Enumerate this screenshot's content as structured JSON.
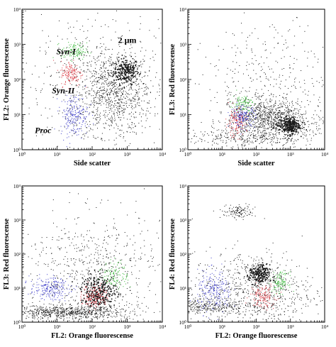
{
  "chart_data": [
    {
      "type": "scatter",
      "xlabel": "Side scatter",
      "ylabel": "FL2: Orange fluorescense",
      "xscale": "log",
      "yscale": "log",
      "xlim": [
        1,
        10000
      ],
      "ylim": [
        1,
        10000
      ],
      "xticks": [
        "10⁰",
        "10¹",
        "10²",
        "10³",
        "10⁴"
      ],
      "yticks": [
        "10⁰",
        "10¹",
        "10²",
        "10³",
        "10⁴"
      ],
      "annotations": [
        {
          "text": "Syn-I",
          "x": 18,
          "y": 520,
          "style": "italic"
        },
        {
          "text": "Syn-II",
          "x": 15,
          "y": 40,
          "style": "italic"
        },
        {
          "text": "Proc",
          "x": 4,
          "y": 3,
          "style": "italic"
        },
        {
          "text": "2 μm",
          "x": 1000,
          "y": 1100,
          "style": "normal"
        }
      ],
      "series": [
        {
          "color": "#1a1a1a",
          "points": 220,
          "center": [
            900,
            180
          ],
          "spread": [
            0.18,
            0.18
          ],
          "core": true
        },
        {
          "color": "#1a1a1a",
          "points": 900,
          "center": [
            400,
            40
          ],
          "spread": [
            0.55,
            0.6
          ],
          "core": false
        },
        {
          "color": "#1a1a1a",
          "points": 420,
          "center": [
            100,
            100
          ],
          "spread": [
            1.2,
            1.1
          ],
          "core": false
        },
        {
          "color": "#2db52d",
          "points": 120,
          "center": [
            30,
            650
          ],
          "spread": [
            0.18,
            0.12
          ],
          "core": false
        },
        {
          "color": "#d8303a",
          "points": 150,
          "center": [
            25,
            150
          ],
          "spread": [
            0.15,
            0.18
          ],
          "core": false
        },
        {
          "color": "#3a3ac8",
          "points": 220,
          "center": [
            30,
            10
          ],
          "spread": [
            0.2,
            0.3
          ],
          "core": false
        }
      ]
    },
    {
      "type": "scatter",
      "xlabel": "Side scatter",
      "ylabel": "FL3: Red fluorescense",
      "xscale": "log",
      "yscale": "log",
      "xlim": [
        1,
        10000
      ],
      "ylim": [
        1,
        10000
      ],
      "xticks": [
        "10⁰",
        "10¹",
        "10²",
        "10³",
        "10⁴"
      ],
      "yticks": [
        "10⁰",
        "10¹",
        "10²",
        "10³",
        "10⁴"
      ],
      "annotations": [],
      "series": [
        {
          "color": "#1a1a1a",
          "points": 260,
          "center": [
            900,
            5
          ],
          "spread": [
            0.15,
            0.12
          ],
          "core": true
        },
        {
          "color": "#1a1a1a",
          "points": 900,
          "center": [
            250,
            8
          ],
          "spread": [
            0.6,
            0.25
          ],
          "core": false
        },
        {
          "color": "#1a1a1a",
          "points": 320,
          "center": [
            60,
            2.2
          ],
          "spread": [
            1.0,
            0.15
          ],
          "core": false
        },
        {
          "color": "#1a1a1a",
          "points": 420,
          "center": [
            300,
            60
          ],
          "spread": [
            1.0,
            0.9
          ],
          "core": false
        },
        {
          "color": "#2db52d",
          "points": 90,
          "center": [
            40,
            22
          ],
          "spread": [
            0.15,
            0.12
          ],
          "core": false
        },
        {
          "color": "#d8303a",
          "points": 140,
          "center": [
            25,
            6
          ],
          "spread": [
            0.15,
            0.2
          ],
          "core": false
        },
        {
          "color": "#3a3ac8",
          "points": 150,
          "center": [
            40,
            9
          ],
          "spread": [
            0.18,
            0.15
          ],
          "core": false
        }
      ]
    },
    {
      "type": "scatter",
      "xlabel": "FL2: Orange fluorescense",
      "ylabel": "FL3: Red fluorescense",
      "xscale": "log",
      "yscale": "log",
      "xlim": [
        1,
        10000
      ],
      "ylim": [
        1,
        10000
      ],
      "xticks": [
        "10⁰",
        "10¹",
        "10²",
        "10³",
        "10⁴"
      ],
      "yticks": [
        "10⁰",
        "10¹",
        "10²",
        "10³",
        "10⁴"
      ],
      "annotations": [],
      "series": [
        {
          "color": "#1a1a1a",
          "points": 700,
          "center": [
            20,
            2.0
          ],
          "spread": [
            0.9,
            0.1
          ],
          "core": false
        },
        {
          "color": "#1a1a1a",
          "points": 280,
          "center": [
            150,
            8
          ],
          "spread": [
            0.25,
            0.25
          ],
          "core": true
        },
        {
          "color": "#1a1a1a",
          "points": 700,
          "center": [
            100,
            30
          ],
          "spread": [
            1.0,
            0.9
          ],
          "core": false
        },
        {
          "color": "#3a3ac8",
          "points": 220,
          "center": [
            6,
            10
          ],
          "spread": [
            0.28,
            0.16
          ],
          "core": false
        },
        {
          "color": "#d8303a",
          "points": 150,
          "center": [
            120,
            6
          ],
          "spread": [
            0.18,
            0.18
          ],
          "core": false
        },
        {
          "color": "#2db52d",
          "points": 110,
          "center": [
            450,
            25
          ],
          "spread": [
            0.18,
            0.2
          ],
          "core": false
        }
      ]
    },
    {
      "type": "scatter",
      "xlabel": "FL2: Orange fluorescense",
      "ylabel": "FL4: Red fluorescense",
      "xscale": "log",
      "yscale": "log",
      "xlim": [
        1,
        10000
      ],
      "ylim": [
        1,
        10000
      ],
      "xticks": [
        "10⁰",
        "10¹",
        "10²",
        "10³",
        "10⁴"
      ],
      "yticks": [
        "10⁰",
        "10¹",
        "10²",
        "10³",
        "10⁴"
      ],
      "annotations": [],
      "series": [
        {
          "color": "#1a1a1a",
          "points": 120,
          "center": [
            30,
            1800
          ],
          "spread": [
            0.25,
            0.1
          ],
          "core": false
        },
        {
          "color": "#1a1a1a",
          "points": 220,
          "center": [
            120,
            25
          ],
          "spread": [
            0.15,
            0.15
          ],
          "core": true
        },
        {
          "color": "#1a1a1a",
          "points": 800,
          "center": [
            80,
            8
          ],
          "spread": [
            0.9,
            0.6
          ],
          "core": false
        },
        {
          "color": "#1a1a1a",
          "points": 300,
          "center": [
            3,
            3
          ],
          "spread": [
            0.6,
            0.1
          ],
          "core": false
        },
        {
          "color": "#3a3ac8",
          "points": 220,
          "center": [
            6,
            8
          ],
          "spread": [
            0.25,
            0.3
          ],
          "core": false
        },
        {
          "color": "#d8303a",
          "points": 140,
          "center": [
            150,
            6
          ],
          "spread": [
            0.18,
            0.18
          ],
          "core": false
        },
        {
          "color": "#2db52d",
          "points": 110,
          "center": [
            500,
            15
          ],
          "spread": [
            0.12,
            0.15
          ],
          "core": false
        }
      ]
    }
  ]
}
